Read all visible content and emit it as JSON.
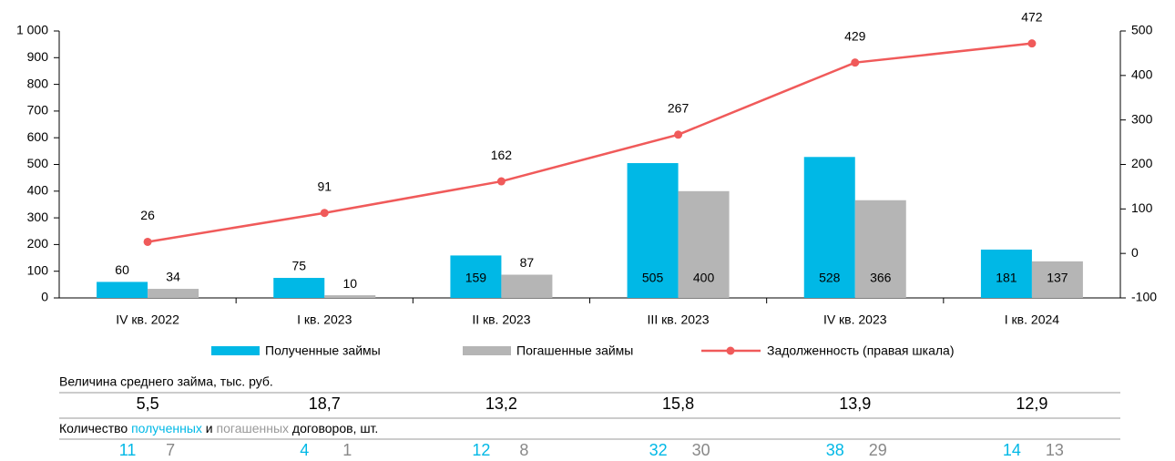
{
  "chart_data": {
    "type": "bar",
    "categories": [
      "IV кв. 2022",
      "I кв. 2023",
      "II кв. 2023",
      "III кв. 2023",
      "IV кв. 2023",
      "I кв. 2024"
    ],
    "series": [
      {
        "name": "Полученные займы",
        "color": "#00b8e6",
        "values": [
          60,
          75,
          159,
          505,
          528,
          181
        ]
      },
      {
        "name": "Погашенные займы",
        "color": "#b5b5b5",
        "values": [
          34,
          10,
          87,
          400,
          366,
          137
        ]
      },
      {
        "name": "Задолженность (правая шкала)",
        "color": "#f05a5a",
        "type": "line",
        "axis": "y2",
        "values": [
          26,
          91,
          162,
          267,
          429,
          472
        ]
      }
    ],
    "ylim": [
      0,
      1000
    ],
    "yticks": [
      0,
      100,
      200,
      300,
      400,
      500,
      600,
      700,
      800,
      900,
      {
        "value": 1000,
        "label": "1 000"
      }
    ],
    "y2lim": [
      -100,
      500
    ],
    "y2ticks": [
      -100,
      0,
      100,
      200,
      300,
      400,
      500
    ]
  },
  "avg_loan": {
    "label": "Величина среднего займа, тыс. руб.",
    "values": [
      "5,5",
      "18,7",
      "13,2",
      "15,8",
      "13,9",
      "12,9"
    ]
  },
  "contracts": {
    "label_parts": [
      "Количество ",
      "полученных",
      " и ",
      "погашенных",
      " договоров, шт."
    ],
    "received": [
      11,
      4,
      12,
      32,
      38,
      14
    ],
    "repaid": [
      7,
      1,
      8,
      30,
      29,
      13
    ]
  }
}
